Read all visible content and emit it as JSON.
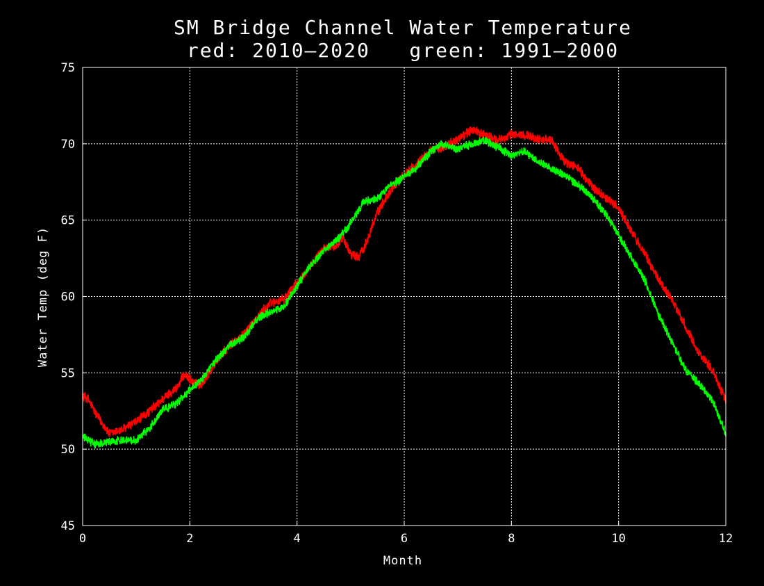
{
  "chart_data": {
    "type": "line",
    "title": "SM Bridge Channel Water Temperature",
    "subtitle": "red: 2010—2020   green: 1991—2000",
    "xlabel": "Month",
    "ylabel": "Water Temp (deg F)",
    "xlim": [
      0,
      12
    ],
    "ylim": [
      45,
      75
    ],
    "xticks": [
      "0",
      "2",
      "4",
      "6",
      "8",
      "10",
      "12"
    ],
    "yticks": [
      "45",
      "50",
      "55",
      "60",
      "65",
      "70",
      "75"
    ],
    "grid": true,
    "background": "#000000",
    "axis_color": "#ffffff",
    "series": [
      {
        "color": "#ff0000",
        "noise": 0.35,
        "x": [
          0,
          0.1,
          0.25,
          0.5,
          0.75,
          1.0,
          1.25,
          1.5,
          1.75,
          1.9,
          2.05,
          2.2,
          2.35,
          2.5,
          2.75,
          3.0,
          3.25,
          3.5,
          3.75,
          4.0,
          4.25,
          4.5,
          4.75,
          4.85,
          5.0,
          5.15,
          5.25,
          5.5,
          5.75,
          6.0,
          6.25,
          6.5,
          6.75,
          7.0,
          7.25,
          7.5,
          7.75,
          8.0,
          8.25,
          8.5,
          8.75,
          9.0,
          9.25,
          9.5,
          9.75,
          10.0,
          10.25,
          10.5,
          10.75,
          11.0,
          11.25,
          11.5,
          11.75,
          12.0
        ],
        "y": [
          53.5,
          53.3,
          52.3,
          51.0,
          51.3,
          51.8,
          52.5,
          53.3,
          54.0,
          54.9,
          54.4,
          54.2,
          54.9,
          55.8,
          56.8,
          57.5,
          58.6,
          59.6,
          59.8,
          60.9,
          62.0,
          63.1,
          63.4,
          63.9,
          62.8,
          62.6,
          63.2,
          65.5,
          67.0,
          68.0,
          68.7,
          69.6,
          69.8,
          70.3,
          70.9,
          70.6,
          70.2,
          70.6,
          70.6,
          70.3,
          70.2,
          68.8,
          68.4,
          67.2,
          66.5,
          65.8,
          64.2,
          62.7,
          61.1,
          59.8,
          58.0,
          56.3,
          55.2,
          53.2
        ]
      },
      {
        "color": "#00ff00",
        "noise": 0.3,
        "x": [
          0,
          0.1,
          0.25,
          0.5,
          0.75,
          1.0,
          1.25,
          1.5,
          1.75,
          2.0,
          2.25,
          2.5,
          2.75,
          3.0,
          3.25,
          3.5,
          3.75,
          4.0,
          4.25,
          4.5,
          4.75,
          5.0,
          5.25,
          5.5,
          5.75,
          6.0,
          6.25,
          6.5,
          6.7,
          7.0,
          7.25,
          7.5,
          7.75,
          8.0,
          8.25,
          8.5,
          8.75,
          9.0,
          9.25,
          9.5,
          9.75,
          10.0,
          10.25,
          10.5,
          10.75,
          11.0,
          11.25,
          11.5,
          11.75,
          12.0
        ],
        "y": [
          50.8,
          50.6,
          50.3,
          50.5,
          50.6,
          50.6,
          51.4,
          52.6,
          53.0,
          53.9,
          54.7,
          55.9,
          56.8,
          57.3,
          58.5,
          59.0,
          59.3,
          60.7,
          62.0,
          63.0,
          63.7,
          64.8,
          66.2,
          66.4,
          67.3,
          67.8,
          68.5,
          69.5,
          70.0,
          69.6,
          70.0,
          70.2,
          69.8,
          69.2,
          69.5,
          68.8,
          68.4,
          67.9,
          67.3,
          66.5,
          65.5,
          64.0,
          62.5,
          61.0,
          58.8,
          57.0,
          55.2,
          54.3,
          53.2,
          51.0
        ]
      }
    ]
  }
}
